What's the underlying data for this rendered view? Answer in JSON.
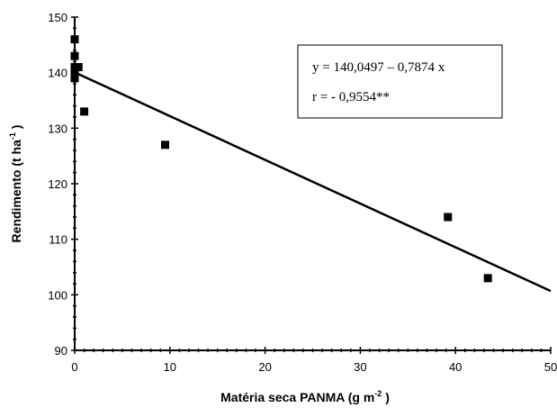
{
  "chart_data": {
    "type": "scatter",
    "xlabel": "Matéria seca PANMA (g m",
    "xlabel_sup": "-2",
    "xlabel_end": " )",
    "ylabel": "Rendimento (t ha",
    "ylabel_sup": "-1",
    "ylabel_end": " )",
    "xlim": [
      0,
      50
    ],
    "ylim": [
      90,
      150
    ],
    "xticks": [
      0,
      10,
      20,
      30,
      40,
      50
    ],
    "yticks": [
      90,
      100,
      110,
      120,
      130,
      140,
      150
    ],
    "grid": false,
    "series": [
      {
        "points": [
          [
            0,
            146
          ],
          [
            0,
            143
          ],
          [
            0,
            141
          ],
          [
            0,
            140
          ],
          [
            0,
            139
          ],
          [
            0.4,
            141
          ],
          [
            1,
            133
          ],
          [
            9.5,
            127
          ],
          [
            39.2,
            114
          ],
          [
            43.4,
            103
          ]
        ]
      }
    ],
    "regression": {
      "intercept": 140.0497,
      "slope": -0.7874,
      "x_range": [
        0,
        50
      ]
    },
    "annotations": {
      "equation": "y = 140,0497 – 0,7874 x",
      "r_value": "r = - 0,9554**"
    }
  }
}
